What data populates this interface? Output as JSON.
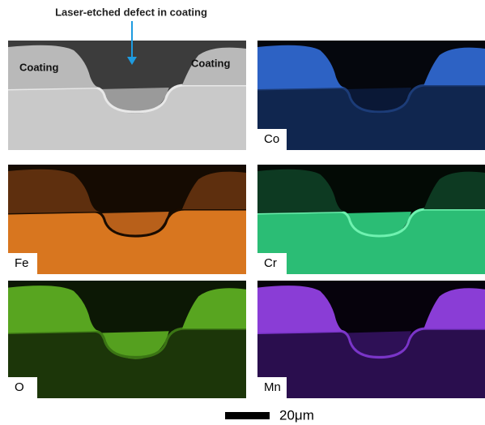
{
  "annotation": "Laser-etched defect in coating",
  "panels": [
    {
      "coating_labels": [
        "Coating",
        "Coating"
      ]
    },
    {
      "label": "Co"
    },
    {
      "label": "Fe"
    },
    {
      "label": "Cr"
    },
    {
      "label": "O"
    },
    {
      "label": "Mn"
    }
  ],
  "scale_bar": {
    "label": "20μm"
  }
}
